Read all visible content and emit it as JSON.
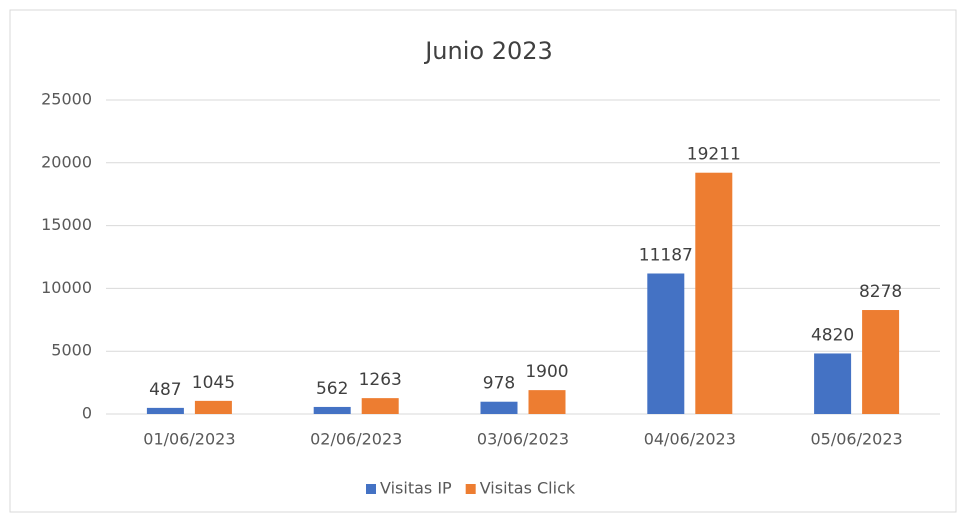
{
  "chart_data": {
    "type": "bar",
    "title": "Junio 2023",
    "categories": [
      "01/06/2023",
      "02/06/2023",
      "03/06/2023",
      "04/06/2023",
      "05/06/2023"
    ],
    "series": [
      {
        "name": "Visitas IP",
        "color": "#4472c4",
        "values": [
          487,
          562,
          978,
          11187,
          4820
        ]
      },
      {
        "name": "Visitas Click",
        "color": "#ed7d31",
        "values": [
          1045,
          1263,
          1900,
          19211,
          8278
        ]
      }
    ],
    "ylim": [
      0,
      25000
    ],
    "yticks": [
      0,
      5000,
      10000,
      15000,
      20000,
      25000
    ],
    "grid": true,
    "legend": "bottom"
  }
}
